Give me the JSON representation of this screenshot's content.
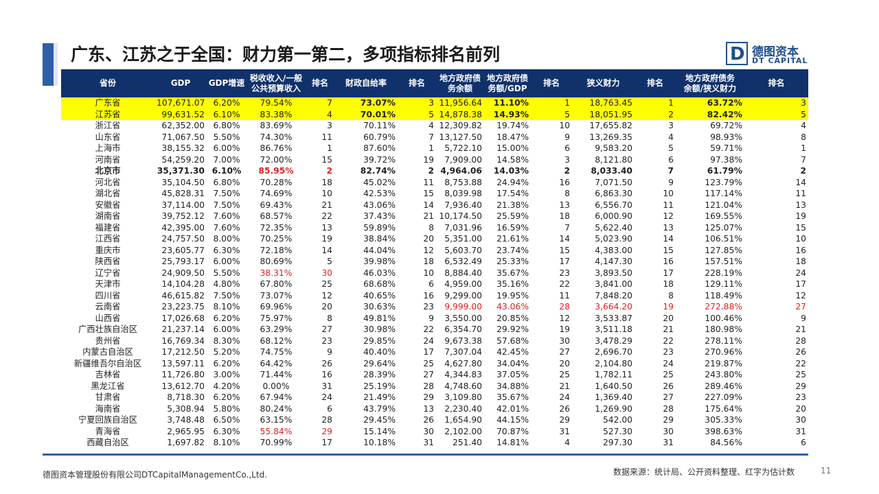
{
  "title": "广东、江苏之于全国：财力第一第二，多项指标排名前列",
  "logo": {
    "mark": "D",
    "cn": "德图资本",
    "en": "DT CAPITAL"
  },
  "headers": [
    "省份",
    "GDP",
    "GDP增速",
    "税收收入/一般\n公共预算收入",
    "排名",
    "财政自给率",
    "排名",
    "地方政府债\n务余额",
    "地方政府债\n务额/GDP",
    "排名",
    "狭义财力",
    "排名",
    "地方政府债务\n余额/狭义财力",
    "排名"
  ],
  "rows": [
    [
      "广东省",
      "107,671.07",
      "6.20%",
      "79.54%",
      "7",
      "73.07%",
      "3",
      "11,956.64",
      "11.10%",
      "1",
      "18,763.45",
      "1",
      "63.72%",
      "3"
    ],
    [
      "江苏省",
      "99,631.52",
      "6.10%",
      "83.38%",
      "4",
      "70.01%",
      "5",
      "14,878.38",
      "14.93%",
      "5",
      "18,051.95",
      "2",
      "82.42%",
      "5"
    ],
    [
      "浙江省",
      "62,352.00",
      "6.80%",
      "83.69%",
      "3",
      "70.11%",
      "4",
      "12,309.82",
      "19.74%",
      "10",
      "17,655.82",
      "3",
      "69.72%",
      "4"
    ],
    [
      "山东省",
      "71,067.50",
      "5.50%",
      "74.30%",
      "11",
      "60.79%",
      "7",
      "13,127.50",
      "18.47%",
      "9",
      "13,269.35",
      "4",
      "98.93%",
      "8"
    ],
    [
      "上海市",
      "38,155.32",
      "6.00%",
      "86.76%",
      "1",
      "87.60%",
      "1",
      "5,722.10",
      "15.00%",
      "6",
      "9,583.20",
      "5",
      "59.71%",
      "1"
    ],
    [
      "河南省",
      "54,259.20",
      "7.00%",
      "72.00%",
      "15",
      "39.72%",
      "19",
      "7,909.00",
      "14.58%",
      "3",
      "8,121.80",
      "6",
      "97.38%",
      "7"
    ],
    [
      "北京市",
      "35,371.30",
      "6.10%",
      "85.95%",
      "2",
      "82.74%",
      "2",
      "4,964.06",
      "14.03%",
      "2",
      "8,033.40",
      "7",
      "61.79%",
      "2"
    ],
    [
      "河北省",
      "35,104.50",
      "6.80%",
      "70.28%",
      "18",
      "45.02%",
      "11",
      "8,753.88",
      "24.94%",
      "16",
      "7,071.50",
      "9",
      "123.79%",
      "14"
    ],
    [
      "湖北省",
      "45,828.31",
      "7.50%",
      "74.69%",
      "10",
      "42.53%",
      "15",
      "8,039.98",
      "17.54%",
      "8",
      "6,863.30",
      "10",
      "117.14%",
      "11"
    ],
    [
      "安徽省",
      "37,114.00",
      "7.50%",
      "69.43%",
      "21",
      "43.06%",
      "14",
      "7,936.40",
      "21.38%",
      "13",
      "6,556.70",
      "11",
      "121.04%",
      "13"
    ],
    [
      "湖南省",
      "39,752.12",
      "7.60%",
      "68.57%",
      "22",
      "37.43%",
      "21",
      "10,174.50",
      "25.59%",
      "18",
      "6,000.90",
      "12",
      "169.55%",
      "19"
    ],
    [
      "福建省",
      "42,395.00",
      "7.60%",
      "72.35%",
      "13",
      "59.89%",
      "8",
      "7,031.96",
      "16.59%",
      "7",
      "5,622.40",
      "13",
      "125.07%",
      "15"
    ],
    [
      "江西省",
      "24,757.50",
      "8.00%",
      "70.25%",
      "19",
      "38.84%",
      "20",
      "5,351.00",
      "21.61%",
      "14",
      "5,023.90",
      "14",
      "106.51%",
      "10"
    ],
    [
      "重庆市",
      "23,605.77",
      "6.30%",
      "72.18%",
      "14",
      "44.04%",
      "12",
      "5,603.70",
      "23.74%",
      "15",
      "4,383.00",
      "15",
      "127.85%",
      "16"
    ],
    [
      "陕西省",
      "25,793.17",
      "6.00%",
      "80.69%",
      "5",
      "39.98%",
      "18",
      "6,532.49",
      "25.33%",
      "17",
      "4,147.30",
      "16",
      "157.51%",
      "18"
    ],
    [
      "辽宁省",
      "24,909.50",
      "5.50%",
      "38.31%",
      "30",
      "46.03%",
      "10",
      "8,884.40",
      "35.67%",
      "23",
      "3,893.50",
      "17",
      "228.19%",
      "24"
    ],
    [
      "天津市",
      "14,104.28",
      "4.80%",
      "67.80%",
      "25",
      "68.68%",
      "6",
      "4,959.00",
      "35.16%",
      "22",
      "3,841.00",
      "18",
      "129.11%",
      "17"
    ],
    [
      "四川省",
      "46,615.82",
      "7.50%",
      "73.07%",
      "12",
      "40.65%",
      "16",
      "9,299.00",
      "19.95%",
      "11",
      "7,848.20",
      "8",
      "118.49%",
      "12"
    ],
    [
      "云南省",
      "23,223.75",
      "8.10%",
      "69.96%",
      "20",
      "30.63%",
      "23",
      "9,999.00",
      "43.06%",
      "28",
      "3,664.20",
      "19",
      "272.88%",
      "27"
    ],
    [
      "山西省",
      "17,026.68",
      "6.20%",
      "75.97%",
      "8",
      "49.81%",
      "9",
      "3,550.00",
      "20.85%",
      "12",
      "3,533.87",
      "20",
      "100.46%",
      "9"
    ],
    [
      "广西壮族自治区",
      "21,237.14",
      "6.00%",
      "63.29%",
      "27",
      "30.98%",
      "22",
      "6,354.70",
      "29.92%",
      "19",
      "3,511.18",
      "21",
      "180.98%",
      "21"
    ],
    [
      "贵州省",
      "16,769.34",
      "8.30%",
      "68.12%",
      "23",
      "29.85%",
      "24",
      "9,673.38",
      "57.68%",
      "30",
      "3,478.29",
      "22",
      "278.11%",
      "28"
    ],
    [
      "内蒙古自治区",
      "17,212.50",
      "5.20%",
      "74.75%",
      "9",
      "40.40%",
      "17",
      "7,307.04",
      "42.45%",
      "27",
      "2,696.70",
      "23",
      "270.96%",
      "26"
    ],
    [
      "新疆维吾尔自治区",
      "13,597.11",
      "6.20%",
      "64.42%",
      "26",
      "29.64%",
      "25",
      "4,627.80",
      "34.04%",
      "20",
      "2,104.80",
      "24",
      "219.87%",
      "22"
    ],
    [
      "吉林省",
      "11,726.80",
      "3.00%",
      "71.44%",
      "16",
      "28.39%",
      "27",
      "4,344.83",
      "37.05%",
      "25",
      "1,782.11",
      "25",
      "243.80%",
      "25"
    ],
    [
      "黑龙江省",
      "13,612.70",
      "4.20%",
      "0.00%",
      "31",
      "25.19%",
      "28",
      "4,748.60",
      "34.88%",
      "21",
      "1,640.50",
      "26",
      "289.46%",
      "29"
    ],
    [
      "甘肃省",
      "8,718.30",
      "6.20%",
      "67.94%",
      "24",
      "21.49%",
      "29",
      "3,109.80",
      "35.67%",
      "24",
      "1,369.40",
      "27",
      "227.09%",
      "23"
    ],
    [
      "海南省",
      "5,308.94",
      "5.80%",
      "80.24%",
      "6",
      "43.79%",
      "13",
      "2,230.40",
      "42.01%",
      "26",
      "1,269.90",
      "28",
      "175.64%",
      "20"
    ],
    [
      "宁夏回族自治区",
      "3,748.48",
      "6.50%",
      "63.15%",
      "28",
      "29.45%",
      "26",
      "1,654.90",
      "44.15%",
      "29",
      "542.00",
      "29",
      "305.33%",
      "30"
    ],
    [
      "青海省",
      "2,965.95",
      "6.30%",
      "55.84%",
      "29",
      "15.14%",
      "30",
      "2,102.00",
      "70.87%",
      "31",
      "527.30",
      "30",
      "398.63%",
      "31"
    ],
    [
      "西藏自治区",
      "1,697.82",
      "8.10%",
      "70.99%",
      "17",
      "10.18%",
      "31",
      "251.40",
      "14.81%",
      "4",
      "297.30",
      "31",
      "84.56%",
      "6"
    ]
  ],
  "footer_left": "德图资本管理股份有限公司DTCapitalManagementCo.,Ltd.",
  "footer_right": "数据来源：统计局、公开资料整理、红字为估计数",
  "page_number": "11",
  "colors": {
    "header_bg": "#10316b",
    "highlight": "#ffff00",
    "estimate_red": "#e02020",
    "accent_bar": "#2c5fa8"
  }
}
